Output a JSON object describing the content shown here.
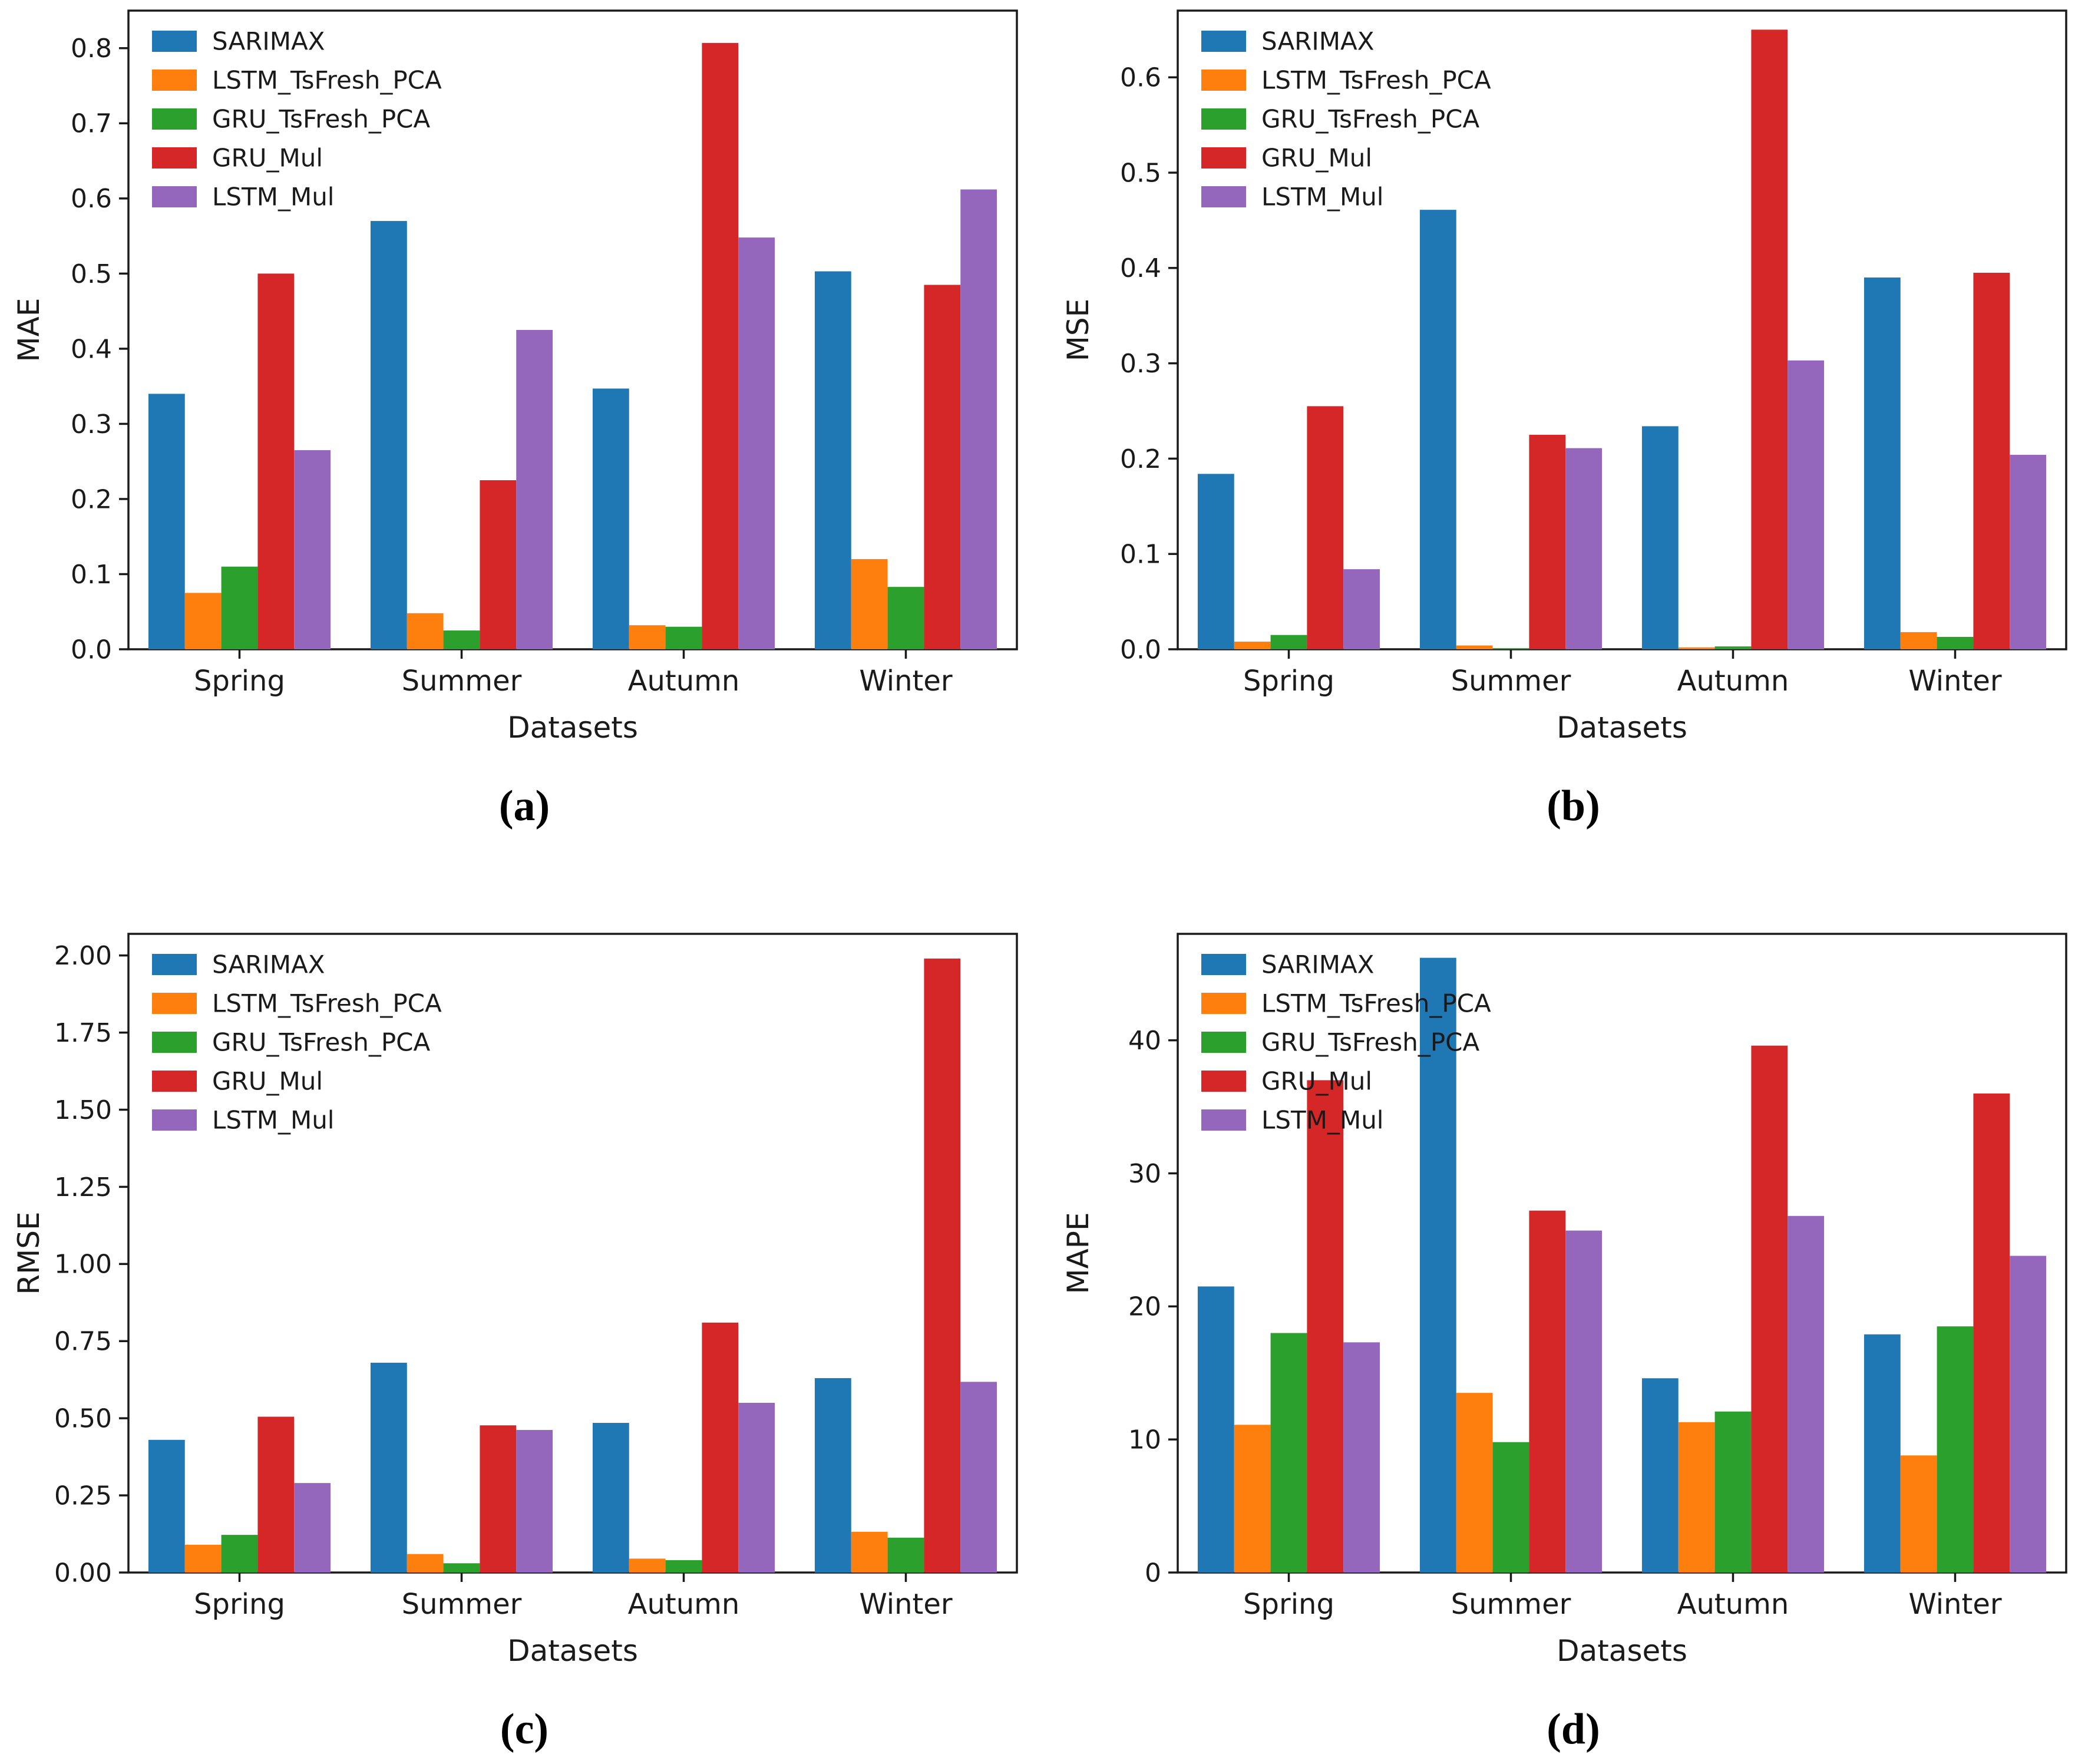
{
  "page": {
    "background_color": "#ffffff",
    "axis_color": "#1a1a1a"
  },
  "captions": [
    "(a)",
    "(b)",
    "(c)",
    "(d)"
  ],
  "legend_labels": [
    "SARIMAX",
    "LSTM_TsFresh_PCA",
    "GRU_TsFresh_PCA",
    "GRU_Mul",
    "LSTM_Mul"
  ],
  "palette": {
    "SARIMAX": "#1f77b4",
    "LSTM_TsFresh_PCA": "#ff7f0e",
    "GRU_TsFresh_PCA": "#2ca02c",
    "GRU_Mul": "#d62728",
    "LSTM_Mul": "#9467bd"
  },
  "chart_data": [
    {
      "type": "bar",
      "title": "",
      "xlabel": "Datasets",
      "ylabel": "MAE",
      "categories": [
        "Spring",
        "Summer",
        "Autumn",
        "Winter"
      ],
      "ylim": [
        0,
        0.85
      ],
      "ytick_values": [
        0.0,
        0.1,
        0.2,
        0.3,
        0.4,
        0.5,
        0.6,
        0.7,
        0.8
      ],
      "ytick_labels": [
        "0.0",
        "0.1",
        "0.2",
        "0.3",
        "0.4",
        "0.5",
        "0.6",
        "0.7",
        "0.8"
      ],
      "grid": false,
      "legend_position": "upper-left",
      "series": [
        {
          "name": "SARIMAX",
          "color": "#1f77b4",
          "values": [
            0.34,
            0.57,
            0.347,
            0.503
          ]
        },
        {
          "name": "LSTM_TsFresh_PCA",
          "color": "#ff7f0e",
          "values": [
            0.075,
            0.048,
            0.032,
            0.12
          ]
        },
        {
          "name": "GRU_TsFresh_PCA",
          "color": "#2ca02c",
          "values": [
            0.11,
            0.025,
            0.03,
            0.083
          ]
        },
        {
          "name": "GRU_Mul",
          "color": "#d62728",
          "values": [
            0.5,
            0.225,
            0.807,
            0.485
          ]
        },
        {
          "name": "LSTM_Mul",
          "color": "#9467bd",
          "values": [
            0.265,
            0.425,
            0.548,
            0.612
          ]
        }
      ]
    },
    {
      "type": "bar",
      "title": "",
      "xlabel": "Datasets",
      "ylabel": "MSE",
      "categories": [
        "Spring",
        "Summer",
        "Autumn",
        "Winter"
      ],
      "ylim": [
        0,
        0.67
      ],
      "ytick_values": [
        0.0,
        0.1,
        0.2,
        0.3,
        0.4,
        0.5,
        0.6
      ],
      "ytick_labels": [
        "0.0",
        "0.1",
        "0.2",
        "0.3",
        "0.4",
        "0.5",
        "0.6"
      ],
      "grid": false,
      "legend_position": "upper-left",
      "series": [
        {
          "name": "SARIMAX",
          "color": "#1f77b4",
          "values": [
            0.184,
            0.461,
            0.234,
            0.39
          ]
        },
        {
          "name": "LSTM_TsFresh_PCA",
          "color": "#ff7f0e",
          "values": [
            0.008,
            0.004,
            0.002,
            0.018
          ]
        },
        {
          "name": "GRU_TsFresh_PCA",
          "color": "#2ca02c",
          "values": [
            0.015,
            0.001,
            0.003,
            0.013
          ]
        },
        {
          "name": "GRU_Mul",
          "color": "#d62728",
          "values": [
            0.255,
            0.225,
            0.65,
            0.395
          ]
        },
        {
          "name": "LSTM_Mul",
          "color": "#9467bd",
          "values": [
            0.084,
            0.211,
            0.303,
            0.204
          ]
        }
      ]
    },
    {
      "type": "bar",
      "title": "",
      "xlabel": "Datasets",
      "ylabel": "RMSE",
      "categories": [
        "Spring",
        "Summer",
        "Autumn",
        "Winter"
      ],
      "ylim": [
        0,
        2.07
      ],
      "ytick_values": [
        0.0,
        0.25,
        0.5,
        0.75,
        1.0,
        1.25,
        1.5,
        1.75,
        2.0
      ],
      "ytick_labels": [
        "0.00",
        "0.25",
        "0.50",
        "0.75",
        "1.00",
        "1.25",
        "1.50",
        "1.75",
        "2.00"
      ],
      "grid": false,
      "legend_position": "upper-left",
      "series": [
        {
          "name": "SARIMAX",
          "color": "#1f77b4",
          "values": [
            0.43,
            0.68,
            0.485,
            0.63
          ]
        },
        {
          "name": "LSTM_TsFresh_PCA",
          "color": "#ff7f0e",
          "values": [
            0.09,
            0.06,
            0.045,
            0.132
          ]
        },
        {
          "name": "GRU_TsFresh_PCA",
          "color": "#2ca02c",
          "values": [
            0.122,
            0.03,
            0.04,
            0.113
          ]
        },
        {
          "name": "GRU_Mul",
          "color": "#d62728",
          "values": [
            0.505,
            0.477,
            0.81,
            1.99
          ]
        },
        {
          "name": "LSTM_Mul",
          "color": "#9467bd",
          "values": [
            0.29,
            0.462,
            0.55,
            0.618
          ]
        }
      ]
    },
    {
      "type": "bar",
      "title": "",
      "xlabel": "Datasets",
      "ylabel": "MAPE",
      "categories": [
        "Spring",
        "Summer",
        "Autumn",
        "Winter"
      ],
      "ylim": [
        0,
        48
      ],
      "ytick_values": [
        0,
        10,
        20,
        30,
        40
      ],
      "ytick_labels": [
        "0",
        "10",
        "20",
        "30",
        "40"
      ],
      "grid": false,
      "legend_position": "upper-left",
      "series": [
        {
          "name": "SARIMAX",
          "color": "#1f77b4",
          "values": [
            21.5,
            46.2,
            14.6,
            17.9
          ]
        },
        {
          "name": "LSTM_TsFresh_PCA",
          "color": "#ff7f0e",
          "values": [
            11.1,
            13.5,
            11.3,
            8.8
          ]
        },
        {
          "name": "GRU_TsFresh_PCA",
          "color": "#2ca02c",
          "values": [
            18.0,
            9.8,
            12.1,
            18.5
          ]
        },
        {
          "name": "GRU_Mul",
          "color": "#d62728",
          "values": [
            37.0,
            27.2,
            39.6,
            36.0
          ]
        },
        {
          "name": "LSTM_Mul",
          "color": "#9467bd",
          "values": [
            17.3,
            25.7,
            26.8,
            23.8
          ]
        }
      ]
    }
  ]
}
